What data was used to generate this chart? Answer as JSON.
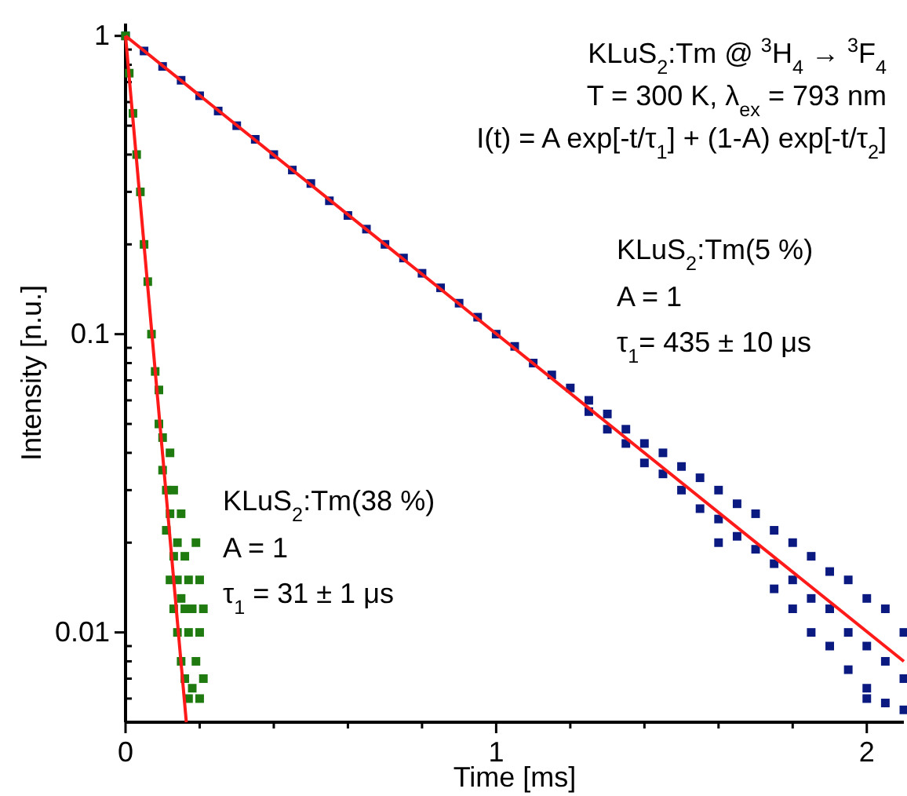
{
  "chart_data": {
    "type": "scatter",
    "xlabel": "Time [ms]",
    "ylabel": "Intensity [n.u.]",
    "log": "y",
    "marker": "square",
    "xlim": [
      0,
      2.1
    ],
    "ylim": [
      0.005,
      1.1
    ],
    "xticks": [
      0,
      {
        "value": 0.2,
        "label": null
      },
      {
        "value": 0.4,
        "label": null
      },
      {
        "value": 0.6,
        "label": null
      },
      {
        "value": 0.8,
        "label": null
      },
      1,
      {
        "value": 1.2,
        "label": null
      },
      {
        "value": 1.4,
        "label": null
      },
      {
        "value": 1.6,
        "label": null
      },
      {
        "value": 1.8,
        "label": null
      },
      2
    ],
    "yticks": [
      {
        "value": 0.006,
        "label": null
      },
      {
        "value": 0.007,
        "label": null
      },
      {
        "value": 0.008,
        "label": null
      },
      {
        "value": 0.009,
        "label": null
      },
      0.01,
      {
        "value": 0.02,
        "label": null
      },
      {
        "value": 0.03,
        "label": null
      },
      {
        "value": 0.04,
        "label": null
      },
      {
        "value": 0.05,
        "label": null
      },
      {
        "value": 0.06,
        "label": null
      },
      {
        "value": 0.07,
        "label": null
      },
      {
        "value": 0.08,
        "label": null
      },
      {
        "value": 0.09,
        "label": null
      },
      0.1,
      {
        "value": 0.2,
        "label": null
      },
      {
        "value": 0.3,
        "label": null
      },
      {
        "value": 0.4,
        "label": null
      },
      {
        "value": 0.5,
        "label": null
      },
      {
        "value": 0.6,
        "label": null
      },
      {
        "value": 0.7,
        "label": null
      },
      {
        "value": 0.8,
        "label": null
      },
      {
        "value": 0.9,
        "label": null
      },
      1
    ],
    "series": [
      {
        "color": "#0a1a80",
        "x": [
          0,
          0.05,
          0.1,
          0.15,
          0.2,
          0.25,
          0.3,
          0.35,
          0.4,
          0.45,
          0.5,
          0.55,
          0.6,
          0.65,
          0.7,
          0.75,
          0.8,
          0.85,
          0.9,
          0.95,
          1.0,
          1.05,
          1.1,
          1.15,
          1.2,
          1.25,
          1.25,
          1.3,
          1.3,
          1.35,
          1.35,
          1.4,
          1.4,
          1.45,
          1.45,
          1.5,
          1.5,
          1.55,
          1.55,
          1.6,
          1.6,
          1.6,
          1.65,
          1.65,
          1.7,
          1.7,
          1.75,
          1.75,
          1.75,
          1.8,
          1.8,
          1.8,
          1.85,
          1.85,
          1.85,
          1.9,
          1.9,
          1.9,
          1.95,
          1.95,
          1.95,
          2.0,
          2.0,
          2.0,
          2.0,
          2.05,
          2.05,
          2.05,
          2.1,
          2.1,
          2.1
        ],
        "values": [
          1.0,
          0.89,
          0.79,
          0.71,
          0.63,
          0.56,
          0.5,
          0.45,
          0.4,
          0.355,
          0.32,
          0.28,
          0.25,
          0.225,
          0.2,
          0.18,
          0.16,
          0.143,
          0.127,
          0.114,
          0.1,
          0.091,
          0.08,
          0.073,
          0.066,
          0.06,
          0.055,
          0.054,
          0.048,
          0.048,
          0.043,
          0.043,
          0.037,
          0.04,
          0.034,
          0.036,
          0.03,
          0.033,
          0.026,
          0.03,
          0.024,
          0.02,
          0.027,
          0.021,
          0.025,
          0.019,
          0.022,
          0.017,
          0.014,
          0.02,
          0.015,
          0.012,
          0.018,
          0.013,
          0.01,
          0.016,
          0.012,
          0.009,
          0.015,
          0.01,
          0.0075,
          0.013,
          0.009,
          0.0065,
          0.006,
          0.012,
          0.008,
          0.0058,
          0.01,
          0.007,
          0.0055
        ]
      },
      {
        "color": "#1f7a10",
        "x": [
          0,
          0.01,
          0.02,
          0.03,
          0.04,
          0.05,
          0.06,
          0.07,
          0.08,
          0.09,
          0.09,
          0.1,
          0.1,
          0.11,
          0.11,
          0.12,
          0.12,
          0.12,
          0.13,
          0.13,
          0.13,
          0.14,
          0.14,
          0.14,
          0.15,
          0.15,
          0.15,
          0.16,
          0.16,
          0.16,
          0.17,
          0.17,
          0.17,
          0.18,
          0.18,
          0.19,
          0.19,
          0.2,
          0.2,
          0.2,
          0.21,
          0.21
        ],
        "values": [
          1.0,
          0.75,
          0.55,
          0.4,
          0.3,
          0.2,
          0.15,
          0.1,
          0.075,
          0.05,
          0.065,
          0.035,
          0.045,
          0.03,
          0.022,
          0.025,
          0.015,
          0.04,
          0.018,
          0.012,
          0.03,
          0.02,
          0.01,
          0.015,
          0.008,
          0.013,
          0.025,
          0.007,
          0.012,
          0.018,
          0.006,
          0.01,
          0.015,
          0.0065,
          0.012,
          0.008,
          0.02,
          0.006,
          0.01,
          0.015,
          0.007,
          0.012
        ]
      },
      {
        "type": "line",
        "marker": "none",
        "color": "#ff1a1a",
        "x": [
          0,
          2.1
        ],
        "values": [
          1.0,
          0.008
        ]
      },
      {
        "type": "line",
        "marker": "none",
        "color": "#ff1a1a",
        "x": [
          0,
          0.164
        ],
        "values": [
          1.0,
          0.005
        ]
      }
    ],
    "annotations": [
      "KLuS$_{2}$:Tm @ $^{3}$H$_{4}$ → $^{3}$F$_{4}$",
      "T = 300 K, λ$_{ex}$ = 793 nm",
      "I(t) = A exp[-t/τ$_{1}$] + (1-A) exp[-t/τ$_{2}$]",
      "KLuS$_{2}$:Tm(5 %)",
      "A = 1",
      "τ$_{1}$= 435 ± 10 μs",
      "KLuS$_{2}$:Tm(38 %)",
      "A = 1",
      "τ$_{1}$ = 31 ± 1 μs"
    ]
  }
}
